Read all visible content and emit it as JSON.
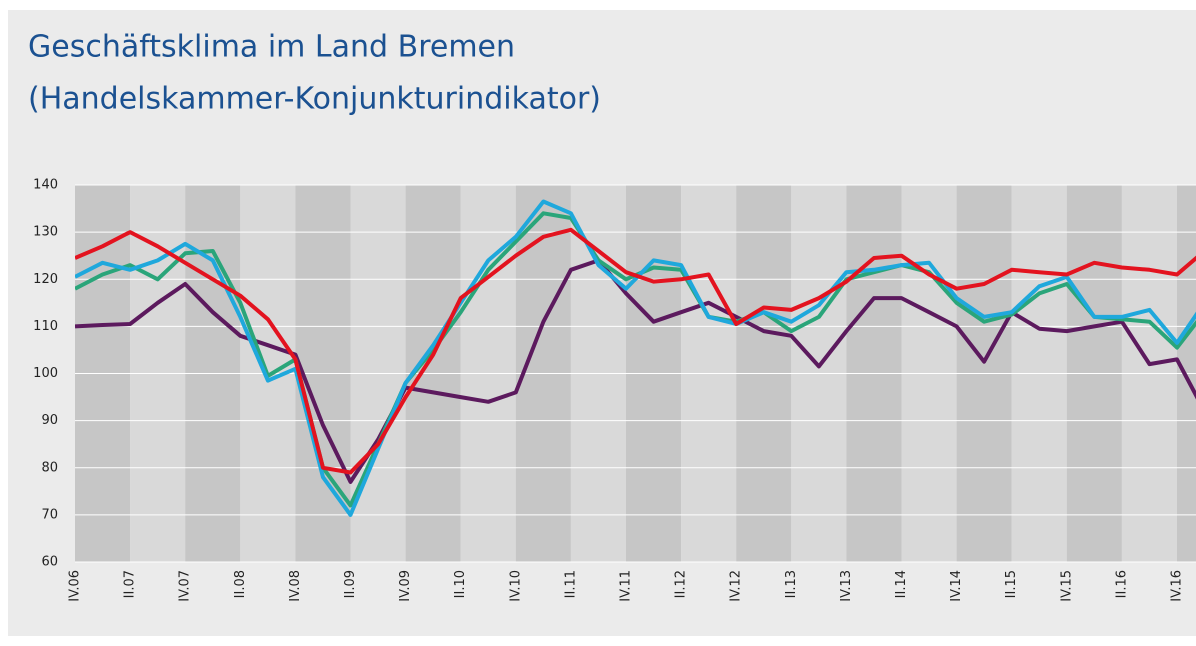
{
  "chart_data": {
    "type": "line",
    "title": "Geschäftsklima im Land Bremen",
    "subtitle": "(Handelskammer-Konjunkturindikator)",
    "categories": [
      "IV.06",
      null,
      "II.07",
      null,
      "IV.07",
      null,
      "II.08",
      null,
      "IV.08",
      null,
      "II.09",
      null,
      "IV.09",
      null,
      "II.10",
      null,
      "IV.10",
      null,
      "II.11",
      null,
      "IV.11",
      null,
      "II.12",
      null,
      "IV.12",
      null,
      "II.13",
      null,
      "IV.13",
      null,
      "II.14",
      null,
      "IV.14",
      null,
      "II.15",
      null,
      "IV.15",
      null,
      "II.16",
      null,
      "IV.16",
      null
    ],
    "ylim": [
      60,
      140
    ],
    "yticks": [
      60,
      70,
      80,
      90,
      100,
      110,
      120,
      130,
      140
    ],
    "grid": true,
    "series": [
      {
        "color": "#5c1a5e",
        "values": [
          110,
          110.3,
          110.5,
          115,
          119,
          113,
          108,
          106,
          104,
          89,
          77,
          86,
          97,
          96,
          95,
          94,
          96,
          111,
          122,
          124,
          117,
          111,
          113,
          115,
          112,
          109,
          108,
          101.5,
          109,
          116,
          116,
          113,
          110,
          102.5,
          113,
          109.5,
          109,
          110,
          111,
          102,
          103,
          92
        ]
      },
      {
        "color": "#2aa57a",
        "values": [
          118,
          121,
          123,
          120,
          125.5,
          126,
          115,
          99.5,
          103,
          80,
          72,
          85,
          98,
          105,
          113,
          122,
          128,
          134,
          133,
          124,
          120,
          122.5,
          122,
          112,
          111,
          113,
          109,
          112,
          120,
          121.5,
          123,
          121.5,
          115,
          111,
          112.5,
          117,
          119,
          112,
          111.5,
          111,
          105.5,
          113
        ]
      },
      {
        "color": "#1fa8dc",
        "values": [
          120.5,
          123.5,
          122,
          124,
          127.5,
          124,
          112,
          98.5,
          101,
          78,
          70,
          84,
          98,
          106,
          115,
          124,
          129,
          136.5,
          134,
          123,
          118,
          124,
          123,
          112,
          110.5,
          113,
          111,
          114.5,
          121.5,
          122,
          123,
          123.5,
          116,
          112,
          113,
          118.5,
          120.5,
          112,
          112,
          113.5,
          106.5,
          115
        ]
      },
      {
        "color": "#e3131f",
        "values": [
          124.5,
          127,
          130,
          127,
          123.5,
          120,
          116.5,
          111.5,
          103,
          80,
          79,
          85,
          95,
          104,
          116,
          120.5,
          125,
          129,
          130.5,
          126,
          121.5,
          119.5,
          120,
          121,
          110.5,
          114,
          113.5,
          116,
          119.5,
          124.5,
          125,
          121,
          118,
          119,
          122,
          121.5,
          121,
          123.5,
          122.5,
          122,
          121,
          126
        ]
      }
    ]
  }
}
